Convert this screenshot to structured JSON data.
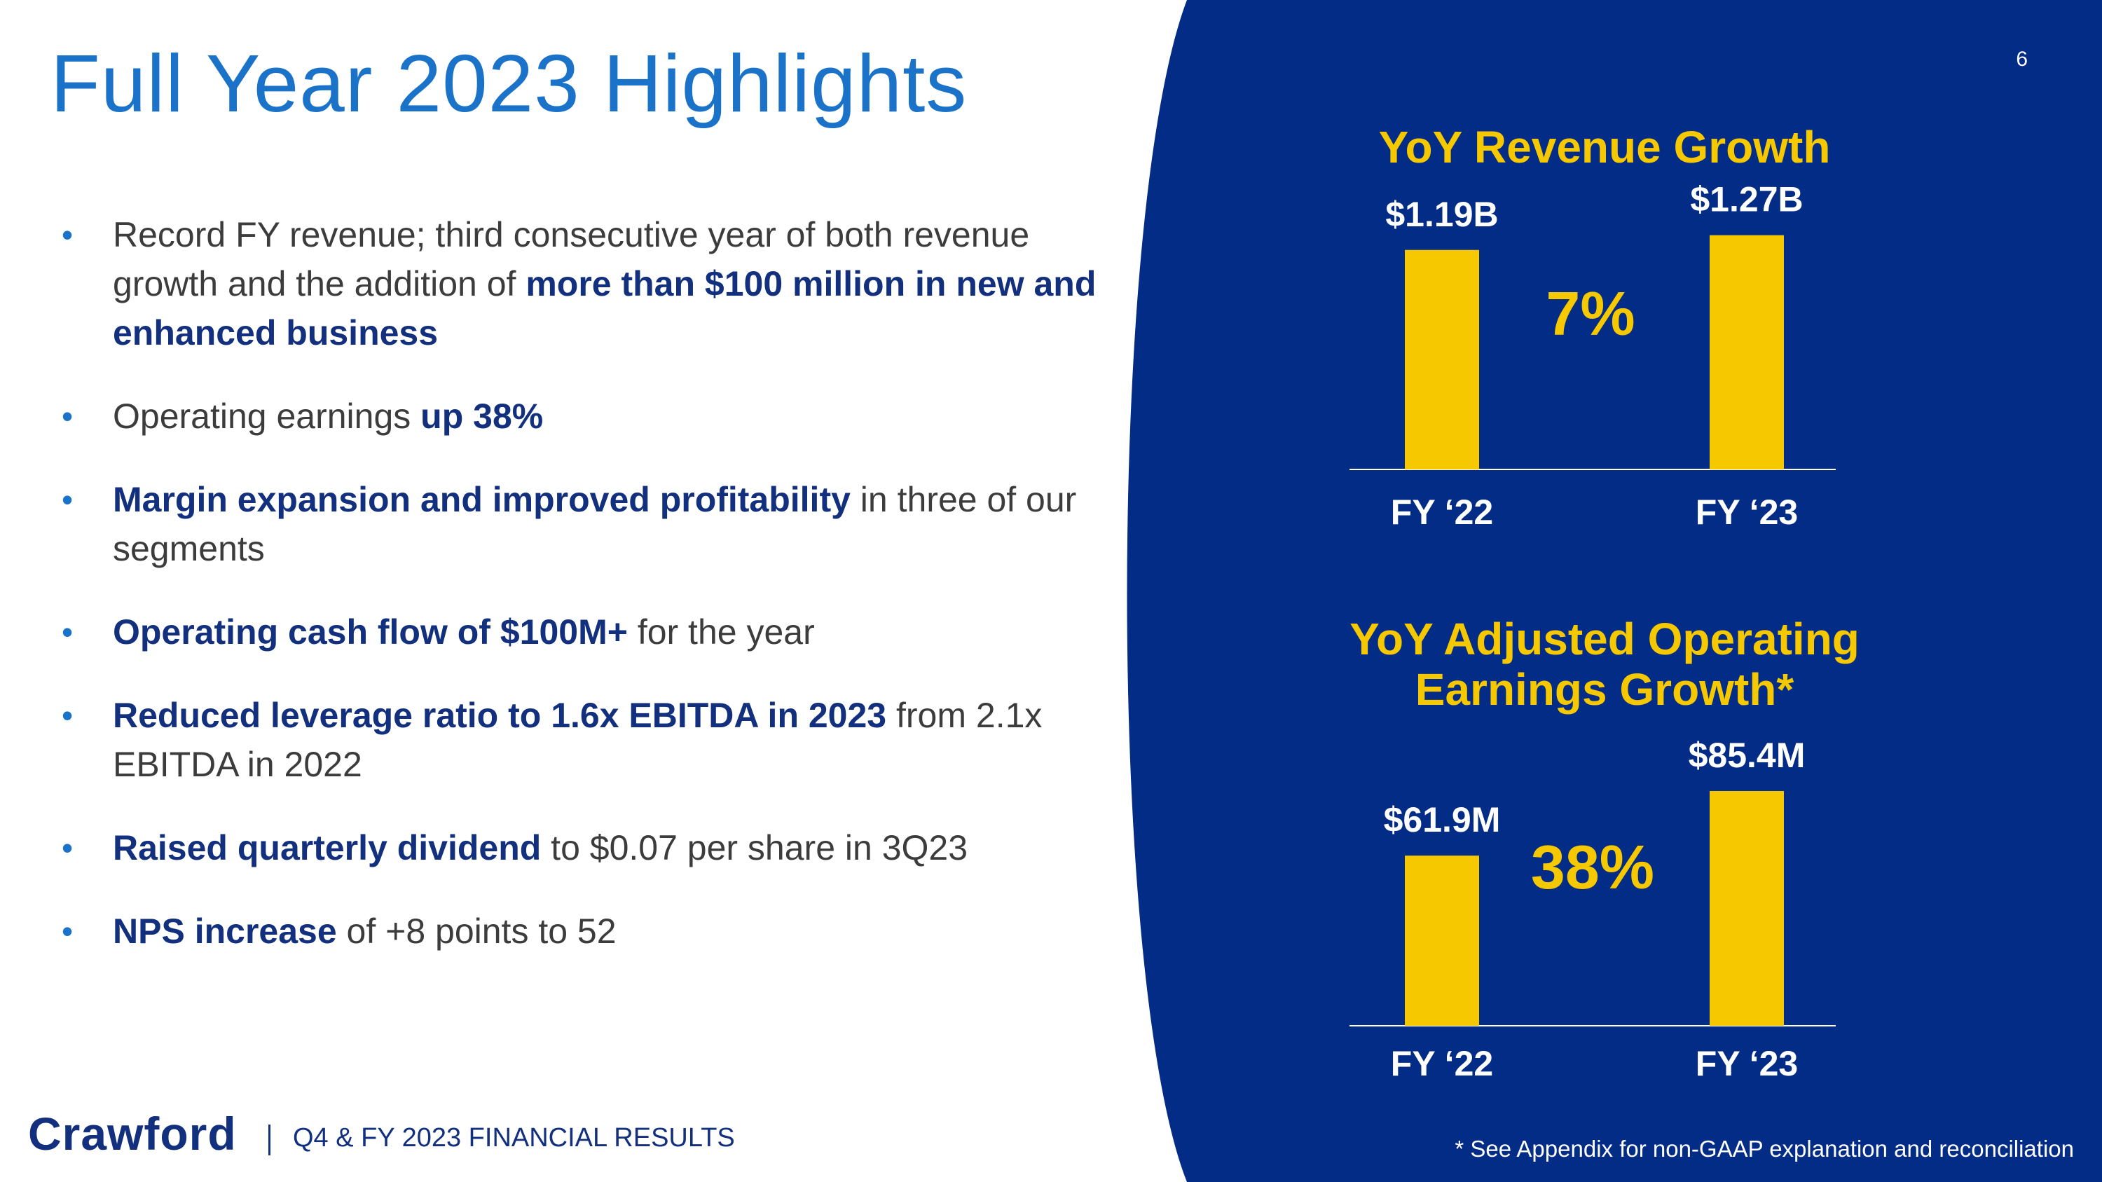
{
  "page": {
    "number": "6",
    "title": "Full Year 2023 Highlights"
  },
  "colors": {
    "panel": "#032c87",
    "title": "#1a73c8",
    "bold_text": "#12307d",
    "bar": "#f5c800",
    "label": "#ffffff"
  },
  "bullets": [
    {
      "t1": "Record FY revenue; third consecutive year of both revenue growth and the addition of ",
      "b1": "more than $100 million in new and enhanced business",
      "t2": ""
    },
    {
      "t1": "Operating earnings ",
      "b1": "up 38%",
      "t2": ""
    },
    {
      "t1": "",
      "b1": "Margin expansion and improved profitability",
      "t2": " in three of our segments"
    },
    {
      "t1": "",
      "b1": "Operating cash flow of $100M+",
      "t2": " for the year"
    },
    {
      "t1": "",
      "b1": "Reduced leverage ratio to 1.6x EBITDA in 2023",
      "t2": " from 2.1x EBITDA in 2022"
    },
    {
      "t1": "",
      "b1": "Raised quarterly dividend",
      "t2": " to $0.07 per share in 3Q23"
    },
    {
      "t1": "",
      "b1": "NPS increase",
      "t2": " of +8 points to 52"
    }
  ],
  "chart_data": [
    {
      "type": "bar",
      "title": "YoY Revenue Growth",
      "categories": [
        "FY ‘22",
        "FY ‘23"
      ],
      "values": [
        1.19,
        1.27
      ],
      "value_labels": [
        "$1.19B",
        "$1.27B"
      ],
      "unit": "$B",
      "growth_label": "7%",
      "ylim": [
        0,
        1.36
      ]
    },
    {
      "type": "bar",
      "title": "YoY Adjusted Operating Earnings Growth*",
      "categories": [
        "FY ‘22",
        "FY ‘23"
      ],
      "values": [
        61.9,
        85.4
      ],
      "value_labels": [
        "$61.9M",
        "$85.4M"
      ],
      "unit": "$M",
      "growth_label": "38%",
      "ylim": [
        0,
        91
      ]
    }
  ],
  "footer": {
    "logo": "Crawford",
    "text": "Q4 & FY 2023 FINANCIAL RESULTS",
    "footnote": "* See Appendix for non-GAAP explanation and reconciliation"
  }
}
